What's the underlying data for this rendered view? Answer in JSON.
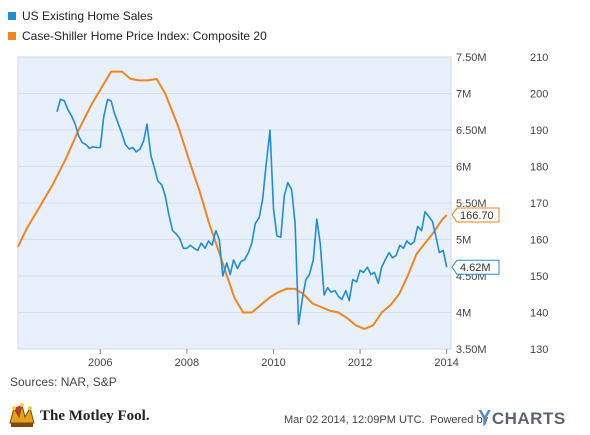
{
  "legend": [
    {
      "label": "US Existing Home Sales",
      "color": "#1f8dd6"
    },
    {
      "label": "Case-Shiller Home Price Index: Composite 20",
      "color": "#f0861c"
    }
  ],
  "sources": "Sources: NAR, S&P",
  "footer": {
    "logo_text": "The Motley Fool.",
    "timestamp": "Mar 02 2014, 12:09PM UTC.",
    "powered_by": "Powered by",
    "ycharts_y": "Y",
    "ycharts_rest": "CHARTS"
  },
  "chart_data": {
    "type": "line",
    "background": "#e8f0fb",
    "x_ticks": [
      "2006",
      "2008",
      "2010",
      "2012",
      "2014"
    ],
    "x_range": [
      2004.1,
      2014.1
    ],
    "left_axis": {
      "ticks": [
        "3.50M",
        "4M",
        "4.50M",
        "5M",
        "5.50M",
        "6M",
        "6.50M",
        "7M",
        "7.50M"
      ],
      "range": [
        3.5,
        7.5
      ]
    },
    "right_axis": {
      "ticks": [
        "130",
        "140",
        "150",
        "160",
        "170",
        "180",
        "190",
        "200",
        "210"
      ],
      "range": [
        130,
        210
      ]
    },
    "series": [
      {
        "name": "US Existing Home Sales",
        "color": "#1f8dd6",
        "axis": "left",
        "end_label": "4.62M",
        "points": [
          [
            2005.0,
            6.75
          ],
          [
            2005.08,
            6.92
          ],
          [
            2005.17,
            6.9
          ],
          [
            2005.25,
            6.78
          ],
          [
            2005.33,
            6.7
          ],
          [
            2005.42,
            6.58
          ],
          [
            2005.5,
            6.42
          ],
          [
            2005.58,
            6.33
          ],
          [
            2005.67,
            6.3
          ],
          [
            2005.75,
            6.25
          ],
          [
            2005.83,
            6.27
          ],
          [
            2005.92,
            6.26
          ],
          [
            2006.0,
            6.26
          ],
          [
            2006.08,
            6.68
          ],
          [
            2006.17,
            6.92
          ],
          [
            2006.25,
            6.9
          ],
          [
            2006.33,
            6.72
          ],
          [
            2006.42,
            6.58
          ],
          [
            2006.5,
            6.45
          ],
          [
            2006.58,
            6.3
          ],
          [
            2006.67,
            6.24
          ],
          [
            2006.75,
            6.26
          ],
          [
            2006.83,
            6.2
          ],
          [
            2006.92,
            6.24
          ],
          [
            2007.0,
            6.35
          ],
          [
            2007.08,
            6.58
          ],
          [
            2007.17,
            6.15
          ],
          [
            2007.25,
            5.98
          ],
          [
            2007.33,
            5.8
          ],
          [
            2007.42,
            5.75
          ],
          [
            2007.5,
            5.6
          ],
          [
            2007.58,
            5.35
          ],
          [
            2007.67,
            5.12
          ],
          [
            2007.75,
            5.08
          ],
          [
            2007.83,
            5.02
          ],
          [
            2007.92,
            4.88
          ],
          [
            2008.0,
            4.88
          ],
          [
            2008.08,
            4.92
          ],
          [
            2008.17,
            4.88
          ],
          [
            2008.25,
            4.85
          ],
          [
            2008.33,
            4.95
          ],
          [
            2008.42,
            4.88
          ],
          [
            2008.5,
            4.98
          ],
          [
            2008.58,
            4.92
          ],
          [
            2008.67,
            5.12
          ],
          [
            2008.75,
            5.0
          ],
          [
            2008.83,
            4.5
          ],
          [
            2008.92,
            4.68
          ],
          [
            2009.0,
            4.52
          ],
          [
            2009.08,
            4.72
          ],
          [
            2009.17,
            4.6
          ],
          [
            2009.25,
            4.7
          ],
          [
            2009.33,
            4.72
          ],
          [
            2009.42,
            4.82
          ],
          [
            2009.5,
            4.95
          ],
          [
            2009.58,
            5.22
          ],
          [
            2009.67,
            5.3
          ],
          [
            2009.75,
            5.55
          ],
          [
            2009.83,
            6.02
          ],
          [
            2009.92,
            6.5
          ],
          [
            2010.0,
            5.42
          ],
          [
            2010.08,
            5.05
          ],
          [
            2010.17,
            5.03
          ],
          [
            2010.25,
            5.6
          ],
          [
            2010.33,
            5.78
          ],
          [
            2010.42,
            5.68
          ],
          [
            2010.5,
            5.22
          ],
          [
            2010.58,
            3.84
          ],
          [
            2010.67,
            4.2
          ],
          [
            2010.75,
            4.45
          ],
          [
            2010.83,
            4.52
          ],
          [
            2010.92,
            4.72
          ],
          [
            2011.0,
            5.28
          ],
          [
            2011.08,
            4.95
          ],
          [
            2011.17,
            4.24
          ],
          [
            2011.25,
            4.34
          ],
          [
            2011.33,
            4.28
          ],
          [
            2011.42,
            4.3
          ],
          [
            2011.5,
            4.22
          ],
          [
            2011.58,
            4.18
          ],
          [
            2011.67,
            4.3
          ],
          [
            2011.75,
            4.16
          ],
          [
            2011.83,
            4.45
          ],
          [
            2011.92,
            4.42
          ],
          [
            2012.0,
            4.58
          ],
          [
            2012.08,
            4.55
          ],
          [
            2012.17,
            4.62
          ],
          [
            2012.25,
            4.52
          ],
          [
            2012.33,
            4.55
          ],
          [
            2012.42,
            4.4
          ],
          [
            2012.5,
            4.62
          ],
          [
            2012.58,
            4.72
          ],
          [
            2012.67,
            4.82
          ],
          [
            2012.75,
            4.75
          ],
          [
            2012.83,
            4.78
          ],
          [
            2012.92,
            4.92
          ],
          [
            2013.0,
            4.88
          ],
          [
            2013.08,
            4.98
          ],
          [
            2013.17,
            4.93
          ],
          [
            2013.25,
            4.97
          ],
          [
            2013.33,
            5.18
          ],
          [
            2013.42,
            5.12
          ],
          [
            2013.5,
            5.38
          ],
          [
            2013.58,
            5.32
          ],
          [
            2013.67,
            5.25
          ],
          [
            2013.75,
            5.05
          ],
          [
            2013.83,
            4.82
          ],
          [
            2013.92,
            4.85
          ],
          [
            2014.0,
            4.62
          ]
        ]
      },
      {
        "name": "Case-Shiller Home Price Index: Composite 20",
        "color": "#f0861c",
        "axis": "right",
        "end_label": "166.70",
        "points": [
          [
            2004.1,
            158
          ],
          [
            2004.3,
            163
          ],
          [
            2004.6,
            169
          ],
          [
            2004.9,
            175
          ],
          [
            2005.2,
            182
          ],
          [
            2005.5,
            190
          ],
          [
            2005.8,
            197
          ],
          [
            2006.05,
            202
          ],
          [
            2006.25,
            206
          ],
          [
            2006.5,
            206
          ],
          [
            2006.7,
            204
          ],
          [
            2006.9,
            203.6
          ],
          [
            2007.1,
            203.6
          ],
          [
            2007.3,
            204
          ],
          [
            2007.5,
            200
          ],
          [
            2007.8,
            191
          ],
          [
            2008.1,
            180
          ],
          [
            2008.3,
            173
          ],
          [
            2008.5,
            165
          ],
          [
            2008.7,
            158
          ],
          [
            2008.9,
            151
          ],
          [
            2009.1,
            144
          ],
          [
            2009.3,
            140
          ],
          [
            2009.5,
            140
          ],
          [
            2009.7,
            142
          ],
          [
            2009.9,
            144
          ],
          [
            2010.1,
            145.5
          ],
          [
            2010.3,
            146.5
          ],
          [
            2010.5,
            146.5
          ],
          [
            2010.7,
            145
          ],
          [
            2010.9,
            142.5
          ],
          [
            2011.1,
            141.5
          ],
          [
            2011.3,
            140.5
          ],
          [
            2011.5,
            140
          ],
          [
            2011.7,
            138.5
          ],
          [
            2011.9,
            136.5
          ],
          [
            2012.1,
            135.5
          ],
          [
            2012.3,
            136.5
          ],
          [
            2012.5,
            140
          ],
          [
            2012.7,
            142
          ],
          [
            2012.9,
            145
          ],
          [
            2013.1,
            150
          ],
          [
            2013.3,
            156
          ],
          [
            2013.5,
            159
          ],
          [
            2013.7,
            162
          ],
          [
            2013.9,
            165.5
          ],
          [
            2014.0,
            166.7
          ]
        ]
      }
    ]
  }
}
